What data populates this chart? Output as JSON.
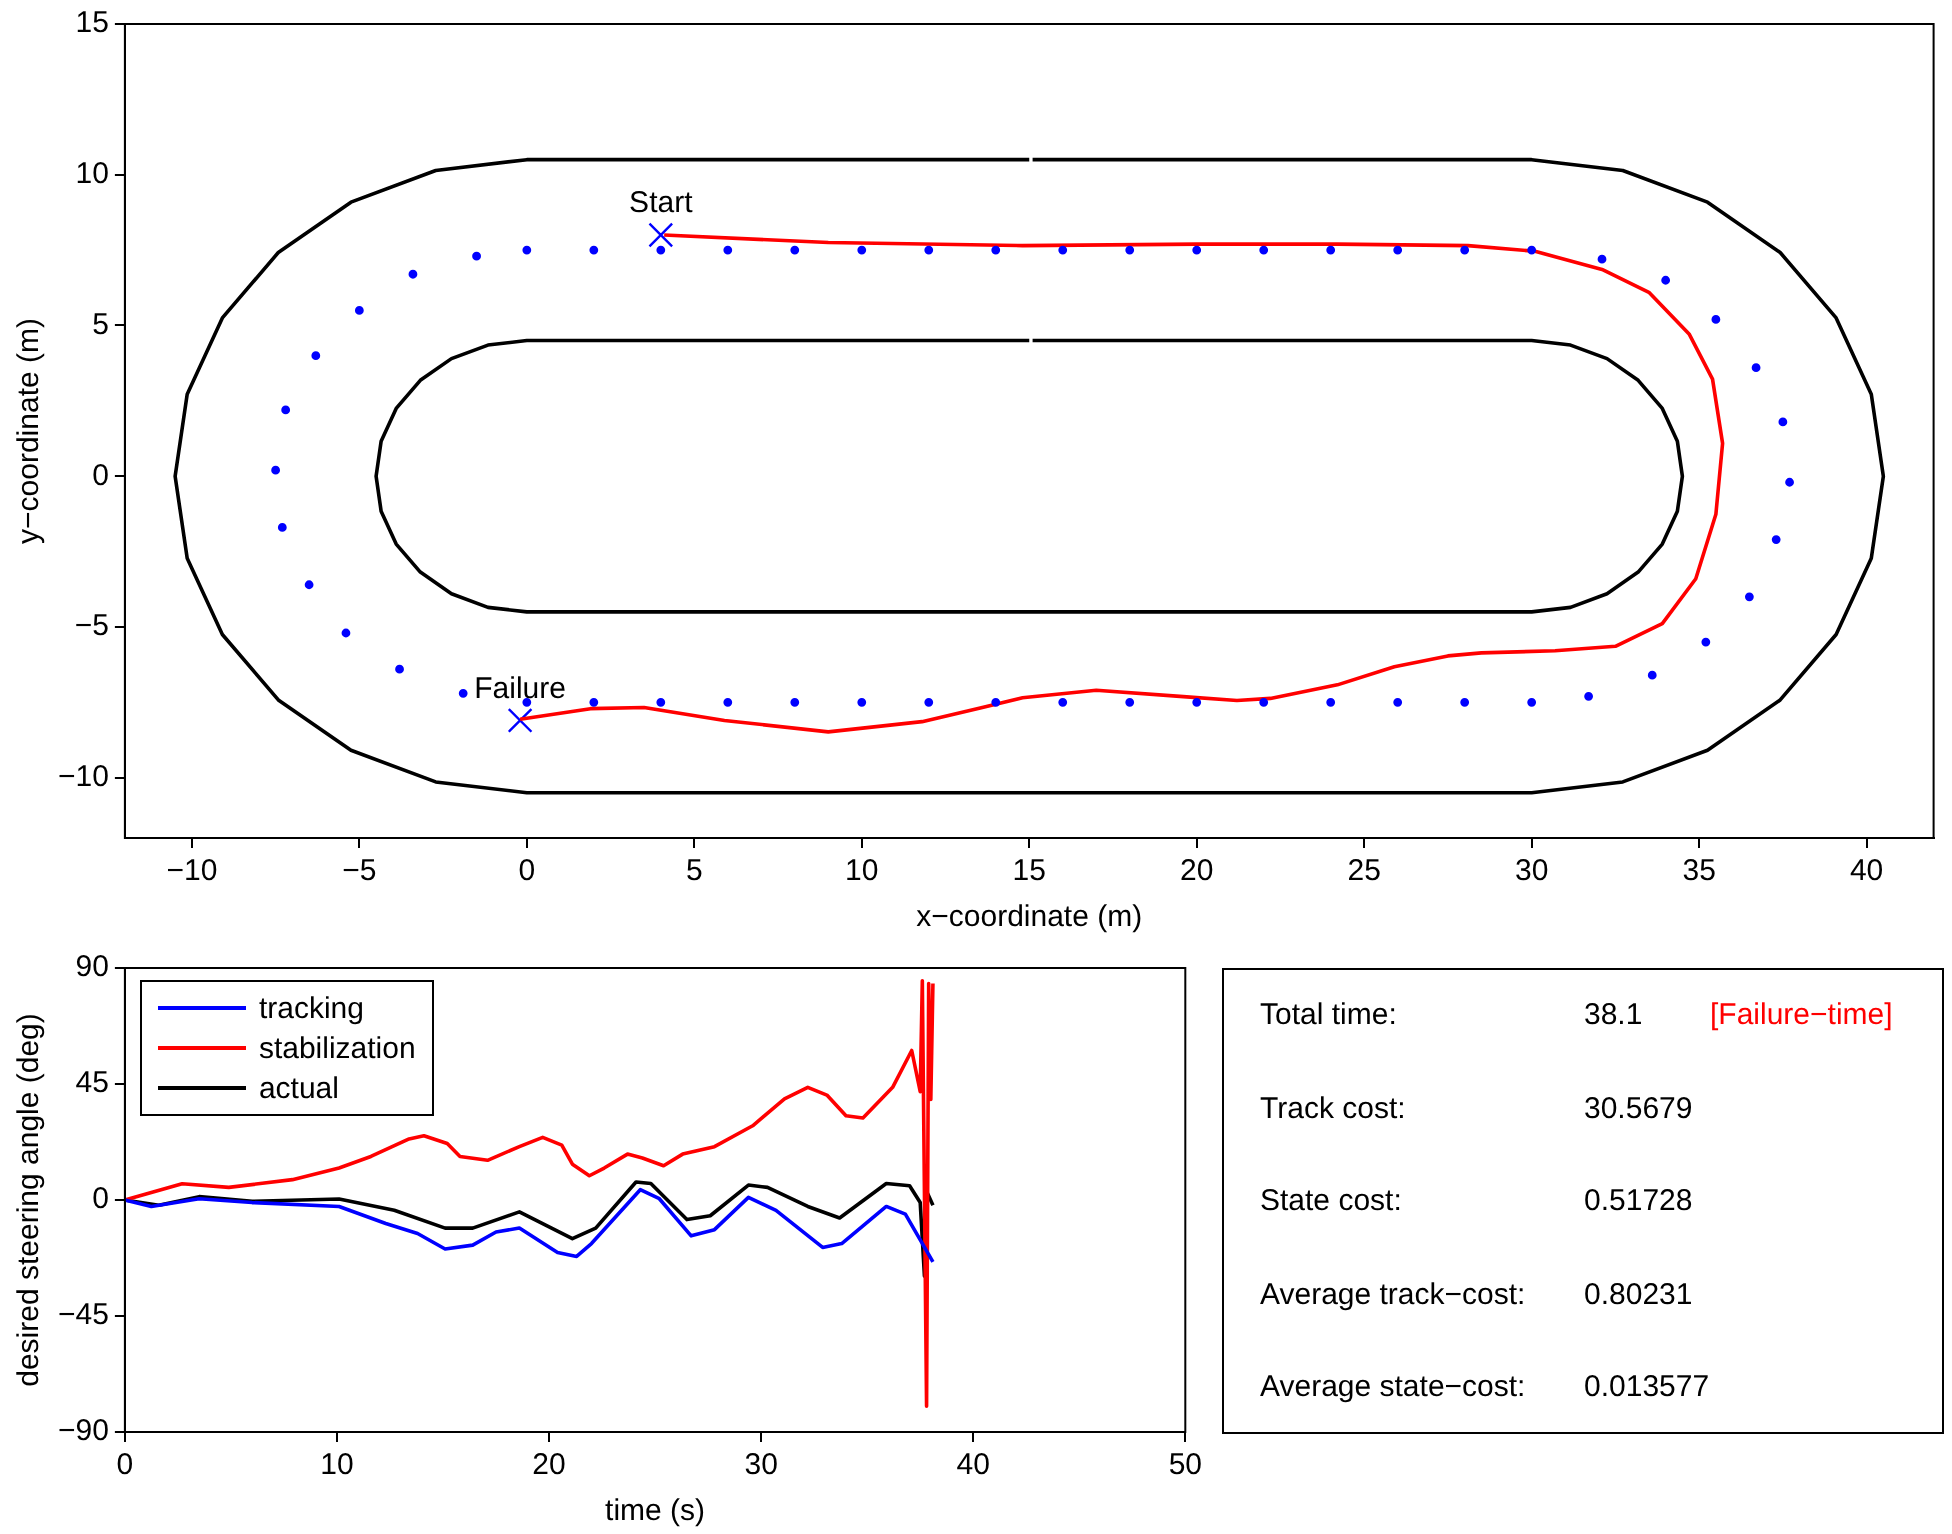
{
  "chart_data": [
    {
      "type": "line",
      "xlabel": "x−coordinate (m)",
      "ylabel": "y−coordinate (m)",
      "xlim": [
        -12,
        42
      ],
      "ylim": [
        -12,
        15
      ],
      "xticks": [
        {
          "value": -10,
          "label": "−10"
        },
        {
          "value": -5,
          "label": "−5"
        },
        0,
        5,
        10,
        15,
        20,
        25,
        30,
        35,
        40
      ],
      "yticks": [
        {
          "value": -10,
          "label": "−10"
        },
        {
          "value": -5,
          "label": "−5"
        },
        0,
        5,
        10,
        15
      ],
      "series": [
        {
          "type": "line",
          "color": "#000000",
          "x": [
            15,
            0,
            -2.72,
            -5.25,
            -7.42,
            -9.09,
            -10.14,
            -10.5,
            -10.14,
            -9.09,
            -7.42,
            -5.25,
            -2.72,
            0,
            15,
            30,
            32.72,
            35.25,
            37.42,
            39.09,
            40.14,
            40.5,
            40.14,
            39.09,
            37.42,
            35.25,
            32.72,
            30,
            15.1
          ],
          "values": [
            10.5,
            10.5,
            10.14,
            9.09,
            7.42,
            5.25,
            2.72,
            0,
            -2.72,
            -5.25,
            -7.42,
            -9.09,
            -10.14,
            -10.5,
            -10.5,
            -10.5,
            -10.14,
            -9.09,
            -7.42,
            -5.25,
            -2.72,
            0,
            2.72,
            5.25,
            7.42,
            9.09,
            10.14,
            10.5,
            10.5
          ]
        },
        {
          "type": "line",
          "color": "#000000",
          "x": [
            15,
            0,
            -1.16,
            -2.25,
            -3.18,
            -3.9,
            -4.35,
            -4.5,
            -4.35,
            -3.9,
            -3.18,
            -2.25,
            -1.16,
            0,
            15,
            30,
            31.16,
            32.25,
            33.18,
            33.9,
            34.35,
            34.5,
            34.35,
            33.9,
            33.18,
            32.25,
            31.16,
            30,
            15.1
          ],
          "values": [
            4.5,
            4.5,
            4.35,
            3.9,
            3.18,
            2.25,
            1.16,
            0,
            -1.16,
            -2.25,
            -3.18,
            -3.9,
            -4.35,
            -4.5,
            -4.5,
            -4.5,
            -4.35,
            -3.9,
            -3.18,
            -2.25,
            -1.16,
            0,
            1.16,
            2.25,
            3.18,
            3.9,
            4.35,
            4.5,
            4.5
          ]
        },
        {
          "type": "scatter",
          "marker": "circle",
          "color": "#0000ff",
          "x": [
            0,
            2,
            4,
            6,
            8,
            10,
            12,
            14,
            16,
            18,
            20,
            22,
            24,
            26,
            28,
            30,
            32.1,
            34.0,
            35.5,
            36.7,
            37.5,
            37.7,
            37.3,
            36.5,
            35.2,
            33.6,
            31.7,
            30,
            28,
            26,
            24,
            22,
            20,
            18,
            16,
            14,
            12,
            10,
            8,
            6,
            4,
            2,
            0,
            -1.9,
            -3.8,
            -5.4,
            -6.5,
            -7.3,
            -7.5,
            -7.2,
            -6.3,
            -5.0,
            -3.4,
            -1.5
          ],
          "values": [
            7.5,
            7.5,
            7.5,
            7.5,
            7.5,
            7.5,
            7.5,
            7.5,
            7.5,
            7.5,
            7.5,
            7.5,
            7.5,
            7.5,
            7.5,
            7.5,
            7.2,
            6.5,
            5.2,
            3.6,
            1.8,
            -0.2,
            -2.1,
            -4.0,
            -5.5,
            -6.6,
            -7.3,
            -7.5,
            -7.5,
            -7.5,
            -7.5,
            -7.5,
            -7.5,
            -7.5,
            -7.5,
            -7.5,
            -7.5,
            -7.5,
            -7.5,
            -7.5,
            -7.5,
            -7.5,
            -7.5,
            -7.2,
            -6.4,
            -5.2,
            -3.6,
            -1.7,
            0.2,
            2.2,
            4.0,
            5.5,
            6.7,
            7.3
          ]
        },
        {
          "type": "line",
          "color": "#ff0000",
          "x": [
            4.1,
            9,
            14.8,
            20,
            24.2,
            28.1,
            30.1,
            32.1,
            33.5,
            34.7,
            35.4,
            35.7,
            35.5,
            34.9,
            33.9,
            32.5,
            30.7,
            28.5,
            27.5,
            25.9,
            24.2,
            22.2,
            21.2,
            19.6,
            17.0,
            14.8,
            13.6,
            11.8,
            9.0,
            5.9,
            3.5,
            1.9,
            -0.2
          ],
          "values": [
            8.0,
            7.75,
            7.65,
            7.7,
            7.7,
            7.65,
            7.46,
            6.86,
            6.1,
            4.72,
            3.22,
            1.09,
            -1.26,
            -3.4,
            -4.89,
            -5.64,
            -5.79,
            -5.86,
            -5.96,
            -6.32,
            -6.92,
            -7.37,
            -7.44,
            -7.31,
            -7.1,
            -7.35,
            -7.67,
            -8.14,
            -8.48,
            -8.1,
            -7.67,
            -7.71,
            -8.06
          ]
        },
        {
          "type": "scatter",
          "marker": "cross",
          "color": "#0000ff",
          "x": [
            4,
            -0.2
          ],
          "values": [
            8,
            -8.1
          ]
        }
      ],
      "annotations": [
        {
          "text": "Start",
          "x": 4,
          "y": 8
        },
        {
          "text": "Failure",
          "x": -0.2,
          "y": -8.1
        }
      ]
    },
    {
      "type": "line",
      "xlabel": "time (s)",
      "ylabel": "desired steering angle (deg)",
      "xlim": [
        0,
        50
      ],
      "ylim": [
        -90,
        90
      ],
      "xticks": [
        0,
        10,
        20,
        30,
        40,
        50
      ],
      "yticks": [
        {
          "value": -90,
          "label": "−90"
        },
        {
          "value": -45,
          "label": "−45"
        },
        0,
        45,
        90
      ],
      "legend": "top left",
      "series": [
        {
          "name": "tracking",
          "color": "#0000ff",
          "x": [
            0,
            1.25,
            3.5,
            6.0,
            10.1,
            12.3,
            13.8,
            15.1,
            16.4,
            17.5,
            18.6,
            20.4,
            21.3,
            22.0,
            24.3,
            25.2,
            26.7,
            27.8,
            29.4,
            30.7,
            32.9,
            33.8,
            35.9,
            36.8,
            38.1
          ],
          "values": [
            0,
            -2.5,
            0.5,
            -1,
            -2.5,
            -9.1,
            -13,
            -19,
            -17.5,
            -12.4,
            -10.9,
            -20.4,
            -21.9,
            -16.9,
            4.0,
            0.5,
            -13.9,
            -11.5,
            1,
            -4,
            -18.4,
            -16.9,
            -2.5,
            -5.5,
            -24
          ]
        },
        {
          "name": "stabilization",
          "color": "#ff0000",
          "x": [
            0,
            2.7,
            4.9,
            7.9,
            10.1,
            11.6,
            13.4,
            14.1,
            15.2,
            15.8,
            17.1,
            18.6,
            19.7,
            20.6,
            21.1,
            21.9,
            22.6,
            23.7,
            24.4,
            25.4,
            26.3,
            27.8,
            29.6,
            31.1,
            32.2,
            33.1,
            34.0,
            34.8,
            36.2,
            37.1,
            37.5,
            37.6,
            37.8,
            37.9,
            38.0,
            38.1
          ],
          "values": [
            0,
            6.3,
            4.9,
            7.9,
            12.4,
            16.9,
            23.7,
            24.9,
            21.9,
            16.9,
            15.4,
            20.7,
            24.3,
            21.3,
            13.9,
            9.4,
            12.4,
            17.8,
            16.3,
            13.3,
            17.8,
            20.7,
            28.8,
            39.2,
            43.7,
            40.7,
            32.7,
            31.8,
            43.7,
            58,
            42,
            85,
            -80,
            84,
            39,
            84
          ]
        },
        {
          "name": "actual",
          "color": "#000000",
          "x": [
            0,
            1.6,
            3.5,
            6,
            10.1,
            12.7,
            15.1,
            16.4,
            18.6,
            21.1,
            22.2,
            24.1,
            24.8,
            26.5,
            27.6,
            29.4,
            30.3,
            32.2,
            33.7,
            35.9,
            37.0,
            37.5,
            37.7,
            37.8,
            38.1
          ],
          "values": [
            0,
            -2,
            1.3,
            -0.5,
            0.4,
            -4,
            -10.9,
            -10.9,
            -4.6,
            -15,
            -10.9,
            7,
            6.4,
            -7.6,
            -6.1,
            5.8,
            4.9,
            -2.5,
            -7,
            6.4,
            5.5,
            -1,
            -29.5,
            3.4,
            -2
          ]
        }
      ]
    },
    {
      "type": "other",
      "annotations": [
        "Total time:",
        "38.1",
        "[Failure−time]",
        "Track cost:",
        "30.5679",
        "State cost:",
        "0.51728",
        "Average track−cost:",
        "0.80231",
        "Average state−cost:",
        "0.013577"
      ]
    }
  ]
}
